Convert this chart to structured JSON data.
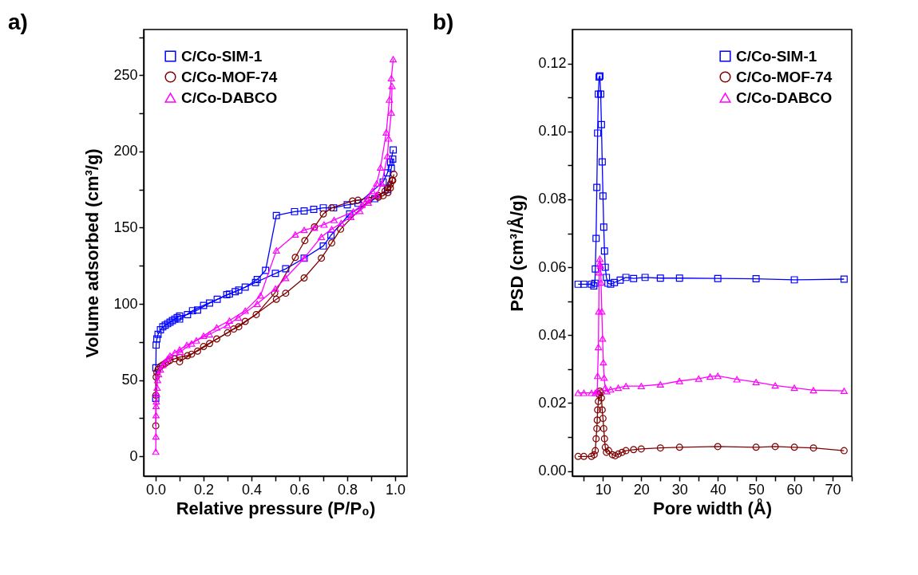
{
  "chart_data": [
    {
      "type": "line",
      "title": "a)",
      "xlabel": "Relative pressure (P/P₀)",
      "ylabel": "Volume adsorbed (cm³/g)",
      "xlim": [
        -0.05,
        1.05
      ],
      "ylim": [
        -13,
        280
      ],
      "xticks": [
        {
          "value": 0,
          "label": "0.0"
        },
        {
          "value": 0.1,
          "label": null
        },
        {
          "value": 0.2,
          "label": "0.2"
        },
        {
          "value": 0.3,
          "label": null
        },
        {
          "value": 0.4,
          "label": "0.4"
        },
        {
          "value": 0.5,
          "label": null
        },
        {
          "value": 0.6,
          "label": "0.6"
        },
        {
          "value": 0.7,
          "label": null
        },
        {
          "value": 0.8,
          "label": "0.8"
        },
        {
          "value": 0.9,
          "label": null
        },
        {
          "value": 1,
          "label": "1.0"
        }
      ],
      "yticks": [
        0,
        {
          "value": 25,
          "label": null
        },
        50,
        {
          "value": 75,
          "label": null
        },
        100,
        {
          "value": 125,
          "label": null
        },
        150,
        {
          "value": 175,
          "label": null
        },
        200,
        {
          "value": 225,
          "label": null
        },
        250,
        {
          "value": 275,
          "label": null
        }
      ],
      "grid": false,
      "legend": "top left",
      "line_style": "solid",
      "series": [
        {
          "name": "C/Co-SIM-1",
          "color": "#0000ff",
          "marker": "square",
          "x": [
            0.0005,
            0.001,
            0.002,
            0.005,
            0.01,
            0.02,
            0.03,
            0.04,
            0.05,
            0.06,
            0.07,
            0.08,
            0.09,
            0.1,
            0.133,
            0.175,
            0.225,
            0.297,
            0.332,
            0.347,
            0.417,
            0.5,
            0.543,
            0.62,
            0.7,
            0.732,
            0.81,
            0.915,
            0.968,
            0.984,
            0.99
          ],
          "values": [
            38,
            58,
            73,
            77,
            80,
            83,
            85,
            86,
            87,
            88,
            89,
            90,
            91,
            92,
            93,
            96,
            100.5,
            106,
            108,
            109,
            114,
            120,
            123,
            130,
            138,
            145,
            159,
            169,
            175,
            189,
            195
          ]
        },
        {
          "color": "#0000ff",
          "marker": "square",
          "x": [
            0.992,
            0.981,
            0.968,
            0.95,
            0.845,
            0.8,
            0.743,
            0.7,
            0.66,
            0.62,
            0.58,
            0.504,
            0.459,
            0.424,
            0.374,
            0.308,
            0.257,
            0.2,
            0.154,
            0.1
          ],
          "values": [
            201,
            193,
            186,
            180,
            166,
            165,
            163,
            163,
            162,
            161,
            160.5,
            158,
            122,
            116,
            111,
            106.5,
            103,
            99,
            95.5,
            90
          ]
        },
        {
          "name": "C/Co-MOF-74",
          "color": "#7f0000",
          "marker": "circle",
          "x": [
            0.0005,
            0.001,
            0.002,
            0.005,
            0.01,
            0.02,
            0.03,
            0.04,
            0.05,
            0.06,
            0.08,
            0.1,
            0.133,
            0.175,
            0.225,
            0.326,
            0.347,
            0.504,
            0.543,
            0.62,
            0.692,
            0.735,
            0.772,
            0.89,
            0.93,
            0.95,
            0.97,
            0.98,
            0.99
          ],
          "values": [
            20,
            40,
            52,
            55,
            57,
            59,
            60,
            61,
            62,
            63,
            64,
            65,
            66,
            69,
            74,
            83.5,
            85,
            103,
            107,
            117,
            130,
            140,
            149,
            168,
            170,
            171,
            173,
            176,
            181
          ]
        },
        {
          "color": "#7f0000",
          "marker": "circle",
          "x": [
            0.995,
            0.987,
            0.98,
            0.97,
            0.958,
            0.93,
            0.845,
            0.822,
            0.735,
            0.7,
            0.663,
            0.623,
            0.583,
            0.497,
            0.42,
            0.374,
            0.3,
            0.255,
            0.2,
            0.15,
            0.1
          ],
          "values": [
            185,
            181,
            178.5,
            176,
            174,
            171,
            168,
            167.5,
            163,
            159,
            150.5,
            141.5,
            130.5,
            107,
            93,
            88.5,
            81,
            77,
            72,
            67,
            62
          ]
        },
        {
          "name": "C/Co-DABCO",
          "color": "#ff00ff",
          "marker": "triangle",
          "x": [
            0.0005,
            0.001,
            0.0015,
            0.002,
            0.003,
            0.004,
            0.006,
            0.008,
            0.012,
            0.02,
            0.03,
            0.04,
            0.05,
            0.06,
            0.08,
            0.1,
            0.13,
            0.17,
            0.225,
            0.3,
            0.345,
            0.424,
            0.5,
            0.543,
            0.62,
            0.692,
            0.735,
            0.775,
            0.815,
            0.853,
            0.888,
            0.923,
            0.944,
            0.968,
            0.973,
            0.984,
            0.987
          ],
          "values": [
            3,
            13,
            27,
            33,
            36,
            41,
            45,
            50,
            54,
            57,
            60,
            62,
            64,
            66,
            68,
            70,
            73,
            76,
            80,
            86,
            91,
            100,
            110,
            117,
            130,
            144,
            149,
            153,
            157,
            161,
            166.5,
            171.5,
            179,
            197,
            208.5,
            225.5,
            243
          ]
        },
        {
          "color": "#ff00ff",
          "marker": "triangle",
          "x": [
            0.992,
            0.984,
            0.976,
            0.963,
            0.939,
            0.923,
            0.905,
            0.883,
            0.862,
            0.825,
            0.745,
            0.703,
            0.663,
            0.62,
            0.583,
            0.504,
            0.438,
            0.374,
            0.308,
            0.255,
            0.2,
            0.15,
            0.103
          ],
          "values": [
            260.5,
            248,
            234,
            212.5,
            189.5,
            179,
            174,
            169,
            165,
            160.5,
            155,
            152,
            150,
            148.5,
            145.5,
            135,
            105.5,
            95.5,
            89,
            84.5,
            79,
            74,
            68.5
          ]
        }
      ]
    },
    {
      "type": "line",
      "title": "b)",
      "xlabel": "Pore width (Å)",
      "ylabel": "PSD (cm³/Å/g)",
      "xlim": [
        2,
        75
      ],
      "ylim": [
        -0.0015,
        0.13
      ],
      "xticks": [
        {
          "value": 5,
          "label": null
        },
        10,
        {
          "value": 15,
          "label": null
        },
        20,
        {
          "value": 25,
          "label": null
        },
        30,
        {
          "value": 35,
          "label": null
        },
        40,
        {
          "value": 45,
          "label": null
        },
        50,
        {
          "value": 55,
          "label": null
        },
        60,
        {
          "value": 65,
          "label": null
        },
        70,
        {
          "value": 75,
          "label": null
        }
      ],
      "yticks": [
        {
          "value": 0,
          "label": "0.00"
        },
        {
          "value": 0.01,
          "label": null
        },
        {
          "value": 0.02,
          "label": "0.02"
        },
        {
          "value": 0.03,
          "label": null
        },
        {
          "value": 0.04,
          "label": "0.04"
        },
        {
          "value": 0.05,
          "label": null
        },
        {
          "value": 0.06,
          "label": "0.06"
        },
        {
          "value": 0.07,
          "label": null
        },
        {
          "value": 0.08,
          "label": "0.08"
        },
        {
          "value": 0.09,
          "label": null
        },
        {
          "value": 0.1,
          "label": "0.10"
        },
        {
          "value": 0.11,
          "label": null
        },
        {
          "value": 0.12,
          "label": "0.12"
        }
      ],
      "grid": false,
      "legend": "top right",
      "line_style": "solid",
      "series": [
        {
          "name": "C/Co-SIM-1",
          "color": "#0000ff",
          "marker": "square",
          "x": [
            3.5,
            5,
            7,
            7.6,
            7.9,
            8.0,
            8.2,
            8.4,
            8.6,
            8.8,
            9.0,
            9.2,
            9.4,
            9.6,
            9.8,
            10.0,
            10.2,
            10.4,
            10.6,
            10.9,
            11.3,
            12,
            13,
            14.5,
            16,
            18,
            21,
            25,
            30,
            40,
            50,
            60,
            73
          ],
          "values": [
            0.055,
            0.055,
            0.055,
            0.0545,
            0.0553,
            0.0595,
            0.0685,
            0.0835,
            0.0995,
            0.111,
            0.116,
            0.1163,
            0.111,
            0.102,
            0.091,
            0.081,
            0.0718,
            0.0648,
            0.06,
            0.057,
            0.0553,
            0.055,
            0.0555,
            0.0562,
            0.057,
            0.0567,
            0.057,
            0.0568,
            0.0568,
            0.0567,
            0.0566,
            0.0563,
            0.0565
          ]
        },
        {
          "name": "C/Co-MOF-74",
          "color": "#7f0000",
          "marker": "circle",
          "x": [
            3.5,
            5,
            7,
            7.7,
            8.0,
            8.2,
            8.4,
            8.5,
            8.6,
            8.8,
            9.0,
            9.2,
            9.4,
            9.6,
            9.8,
            10.0,
            10.2,
            10.4,
            10.6,
            10.9,
            11.5,
            12.5,
            13.2,
            14,
            15,
            16,
            18,
            20,
            25,
            30,
            40,
            50,
            55,
            60,
            65,
            73
          ],
          "values": [
            0.0043,
            0.0043,
            0.0043,
            0.0048,
            0.006,
            0.0095,
            0.0125,
            0.015,
            0.018,
            0.0205,
            0.0225,
            0.0235,
            0.023,
            0.0215,
            0.018,
            0.0155,
            0.0125,
            0.0095,
            0.007,
            0.0055,
            0.006,
            0.0048,
            0.0045,
            0.005,
            0.0055,
            0.006,
            0.0063,
            0.0065,
            0.0068,
            0.007,
            0.0072,
            0.007,
            0.0072,
            0.007,
            0.0068,
            0.006
          ]
        },
        {
          "name": "C/Co-DABCO",
          "color": "#ff00ff",
          "marker": "triangle",
          "x": [
            3.5,
            5,
            7,
            8,
            8.5,
            8.6,
            8.8,
            8.9,
            9.0,
            9.1,
            9.2,
            9.4,
            9.5,
            9.7,
            9.9,
            10.1,
            10.3,
            10.6,
            11,
            12,
            14,
            16,
            20,
            25,
            30,
            35,
            38,
            40,
            45,
            50,
            55,
            60,
            65,
            73
          ],
          "values": [
            0.023,
            0.023,
            0.023,
            0.023,
            0.0235,
            0.028,
            0.0365,
            0.047,
            0.0585,
            0.061,
            0.0625,
            0.0605,
            0.0555,
            0.047,
            0.039,
            0.032,
            0.0275,
            0.0245,
            0.0235,
            0.024,
            0.0245,
            0.025,
            0.025,
            0.0255,
            0.0265,
            0.0272,
            0.0278,
            0.028,
            0.027,
            0.0262,
            0.0252,
            0.0245,
            0.0238,
            0.0236
          ]
        }
      ]
    }
  ]
}
